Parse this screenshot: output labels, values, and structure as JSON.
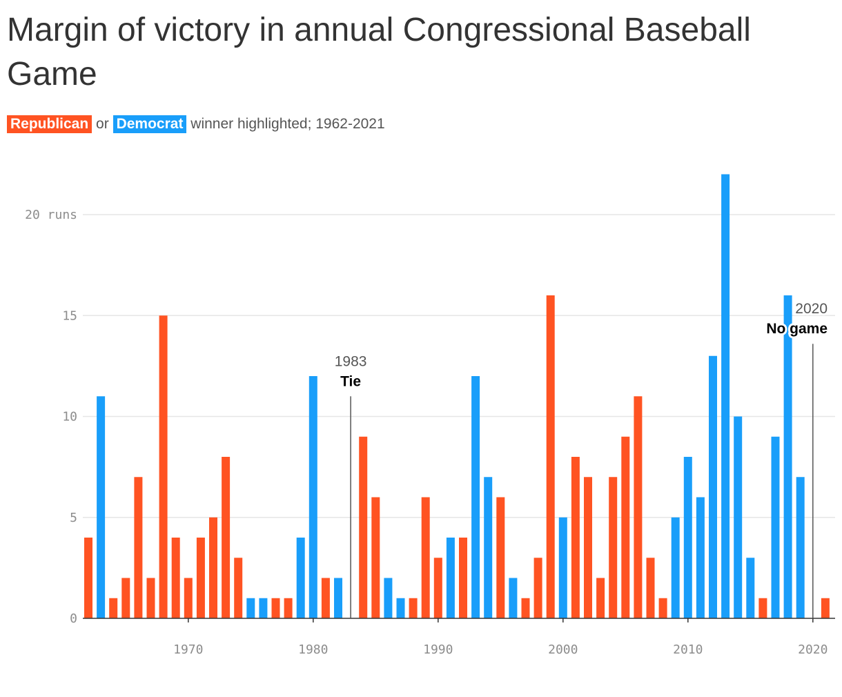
{
  "header": {
    "title": "Margin of victory in annual Congressional Baseball Game",
    "subtitle_republican": "Republican",
    "subtitle_or": "or",
    "subtitle_democrat": "Democrat",
    "subtitle_rest": "winner highlighted; 1962-2021"
  },
  "colors": {
    "republican": "#ff5322",
    "democrat": "#199efa",
    "grid": "#e6e6e6",
    "axis": "#333333",
    "annotation_line": "#555555"
  },
  "chart_data": {
    "type": "bar",
    "title": "Margin of victory in annual Congressional Baseball Game",
    "xlabel": "",
    "ylabel": "",
    "ylim": [
      0,
      22
    ],
    "xlim": [
      1962,
      2021
    ],
    "y_ticks": [
      {
        "value": 0,
        "label": "0"
      },
      {
        "value": 5,
        "label": "5"
      },
      {
        "value": 10,
        "label": "10"
      },
      {
        "value": 15,
        "label": "15"
      },
      {
        "value": 20,
        "label": "20 runs"
      }
    ],
    "x_ticks": [
      {
        "value": 1970,
        "label": "1970"
      },
      {
        "value": 1980,
        "label": "1980"
      },
      {
        "value": 1990,
        "label": "1990"
      },
      {
        "value": 2000,
        "label": "2000"
      },
      {
        "value": 2010,
        "label": "2010"
      },
      {
        "value": 2020,
        "label": "2020"
      }
    ],
    "grid": true,
    "points": [
      {
        "year": 1962,
        "margin": 4,
        "winner": "R"
      },
      {
        "year": 1963,
        "margin": 11,
        "winner": "D"
      },
      {
        "year": 1964,
        "margin": 1,
        "winner": "R"
      },
      {
        "year": 1965,
        "margin": 2,
        "winner": "R"
      },
      {
        "year": 1966,
        "margin": 7,
        "winner": "R"
      },
      {
        "year": 1967,
        "margin": 2,
        "winner": "R"
      },
      {
        "year": 1968,
        "margin": 15,
        "winner": "R"
      },
      {
        "year": 1969,
        "margin": 4,
        "winner": "R"
      },
      {
        "year": 1970,
        "margin": 2,
        "winner": "R"
      },
      {
        "year": 1971,
        "margin": 4,
        "winner": "R"
      },
      {
        "year": 1972,
        "margin": 5,
        "winner": "R"
      },
      {
        "year": 1973,
        "margin": 8,
        "winner": "R"
      },
      {
        "year": 1974,
        "margin": 3,
        "winner": "R"
      },
      {
        "year": 1975,
        "margin": 1,
        "winner": "D"
      },
      {
        "year": 1976,
        "margin": 1,
        "winner": "D"
      },
      {
        "year": 1977,
        "margin": 1,
        "winner": "R"
      },
      {
        "year": 1978,
        "margin": 1,
        "winner": "R"
      },
      {
        "year": 1979,
        "margin": 4,
        "winner": "D"
      },
      {
        "year": 1980,
        "margin": 12,
        "winner": "D"
      },
      {
        "year": 1981,
        "margin": 2,
        "winner": "R"
      },
      {
        "year": 1982,
        "margin": 2,
        "winner": "D"
      },
      {
        "year": 1984,
        "margin": 9,
        "winner": "R"
      },
      {
        "year": 1985,
        "margin": 6,
        "winner": "R"
      },
      {
        "year": 1986,
        "margin": 2,
        "winner": "D"
      },
      {
        "year": 1987,
        "margin": 1,
        "winner": "D"
      },
      {
        "year": 1988,
        "margin": 1,
        "winner": "R"
      },
      {
        "year": 1989,
        "margin": 6,
        "winner": "R"
      },
      {
        "year": 1990,
        "margin": 3,
        "winner": "R"
      },
      {
        "year": 1991,
        "margin": 4,
        "winner": "D"
      },
      {
        "year": 1992,
        "margin": 4,
        "winner": "R"
      },
      {
        "year": 1993,
        "margin": 12,
        "winner": "D"
      },
      {
        "year": 1994,
        "margin": 7,
        "winner": "D"
      },
      {
        "year": 1995,
        "margin": 6,
        "winner": "R"
      },
      {
        "year": 1996,
        "margin": 2,
        "winner": "D"
      },
      {
        "year": 1997,
        "margin": 1,
        "winner": "R"
      },
      {
        "year": 1998,
        "margin": 3,
        "winner": "R"
      },
      {
        "year": 1999,
        "margin": 16,
        "winner": "R"
      },
      {
        "year": 2000,
        "margin": 5,
        "winner": "D"
      },
      {
        "year": 2001,
        "margin": 8,
        "winner": "R"
      },
      {
        "year": 2002,
        "margin": 7,
        "winner": "R"
      },
      {
        "year": 2003,
        "margin": 2,
        "winner": "R"
      },
      {
        "year": 2004,
        "margin": 7,
        "winner": "R"
      },
      {
        "year": 2005,
        "margin": 9,
        "winner": "R"
      },
      {
        "year": 2006,
        "margin": 11,
        "winner": "R"
      },
      {
        "year": 2007,
        "margin": 3,
        "winner": "R"
      },
      {
        "year": 2008,
        "margin": 1,
        "winner": "R"
      },
      {
        "year": 2009,
        "margin": 5,
        "winner": "D"
      },
      {
        "year": 2010,
        "margin": 8,
        "winner": "D"
      },
      {
        "year": 2011,
        "margin": 6,
        "winner": "D"
      },
      {
        "year": 2012,
        "margin": 13,
        "winner": "D"
      },
      {
        "year": 2013,
        "margin": 22,
        "winner": "D"
      },
      {
        "year": 2014,
        "margin": 10,
        "winner": "D"
      },
      {
        "year": 2015,
        "margin": 3,
        "winner": "D"
      },
      {
        "year": 2016,
        "margin": 1,
        "winner": "R"
      },
      {
        "year": 2017,
        "margin": 9,
        "winner": "D"
      },
      {
        "year": 2018,
        "margin": 16,
        "winner": "D"
      },
      {
        "year": 2019,
        "margin": 7,
        "winner": "D"
      },
      {
        "year": 2021,
        "margin": 1,
        "winner": "R"
      }
    ],
    "annotations": [
      {
        "year": 1983,
        "year_label": "1983",
        "text": "Tie",
        "line_top_value": 11
      },
      {
        "year": 2020,
        "year_label": "2020",
        "text": "No game",
        "line_top_value": 13.6
      }
    ]
  }
}
